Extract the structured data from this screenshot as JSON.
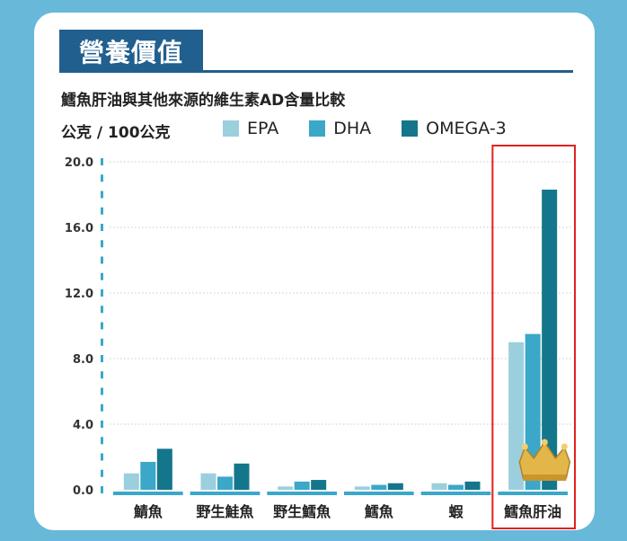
{
  "header": {
    "title": "營養價值",
    "subtitle": "鱈魚肝油與其他來源的維生素AD含量比較",
    "unit": "公克 / 100公克"
  },
  "colors": {
    "EPA": "#9ccfdd",
    "DHA": "#3ba7c9",
    "OMEGA-3": "#14768a",
    "highlight_border": "#e02020",
    "crown": "crown-icon"
  },
  "chart_data": {
    "type": "bar",
    "title": "鱈魚肝油與其他來源的維生素AD含量比較",
    "ylabel": "公克 / 100公克",
    "xlabel": "",
    "categories": [
      "鯖魚",
      "野生鮭魚",
      "野生鱈魚",
      "鱈魚",
      "蝦",
      "鱈魚肝油"
    ],
    "series": [
      {
        "name": "EPA",
        "values": [
          1.0,
          1.0,
          0.2,
          0.2,
          0.4,
          9.0
        ]
      },
      {
        "name": "DHA",
        "values": [
          1.7,
          0.8,
          0.5,
          0.3,
          0.3,
          9.5
        ]
      },
      {
        "name": "OMEGA-3",
        "values": [
          2.5,
          1.6,
          0.6,
          0.4,
          0.5,
          18.3
        ]
      }
    ],
    "ylim": [
      0,
      20
    ],
    "yticks": [
      "0.0",
      "4.0",
      "8.0",
      "12.0",
      "16.0",
      "20.0"
    ],
    "grid": true,
    "legend_position": "top",
    "highlighted_category": "鱈魚肝油"
  }
}
